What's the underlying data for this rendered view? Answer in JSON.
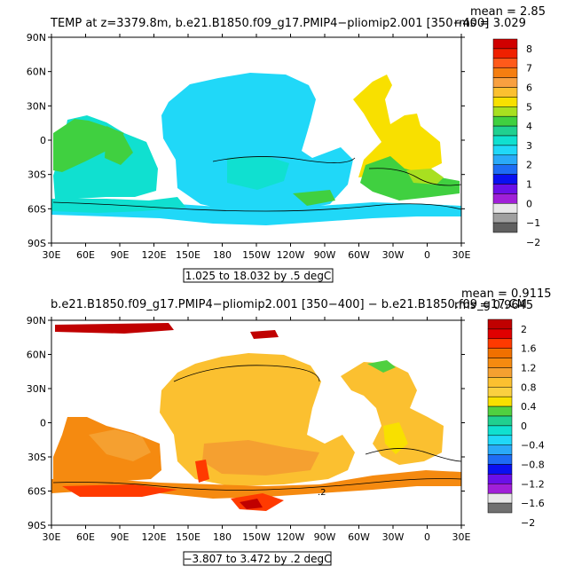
{
  "panel1": {
    "title": "TEMP at z=3379.8m, b.e21.B1850.f09_g17.PMIP4−pliomip2.001 [350−400]",
    "mean": "mean = 2.85",
    "rms": "rms = 3.029",
    "range": "1.025 to 18.032 by .5 degC"
  },
  "panel2": {
    "title": "b.e21.B1850.f09_g17.PMIP4−pliomip2.001 [350−400] − b.e21.B1850.f09_g17.CM",
    "mean": "mean = 0.9115",
    "rms": "rms = 0.9645",
    "range": "−3.807 to 3.472 by .2 degC",
    "contour_label": ".2"
  },
  "lat_labels": [
    "90N",
    "60N",
    "30N",
    "0",
    "30S",
    "60S",
    "90S"
  ],
  "lon_labels": [
    "30E",
    "60E",
    "90E",
    "120E",
    "150E",
    "180",
    "150W",
    "120W",
    "90W",
    "60W",
    "30W",
    "0",
    "30E"
  ],
  "legend1": {
    "labels": [
      "8",
      "7",
      "6",
      "5",
      "4",
      "3",
      "2",
      "1",
      "0",
      "−1",
      "−2"
    ],
    "colors": [
      "#d00000",
      "#f02000",
      "#ff5a1a",
      "#f57e10",
      "#f8a040",
      "#fbc030",
      "#f8e000",
      "#a8e020",
      "#40d040",
      "#20d090",
      "#10e0d0",
      "#20d8f8",
      "#2aaaf8",
      "#1e6cf4",
      "#0a10f0",
      "#6a10e8",
      "#a020d8",
      "#e8e8e8",
      "#a0a0a0",
      "#606060"
    ]
  },
  "legend2": {
    "labels": [
      "2",
      "1.6",
      "1.2",
      "0.8",
      "0.4",
      "0",
      "−0.4",
      "−0.8",
      "−1.2",
      "−1.6",
      "−2"
    ],
    "colors": [
      "#c00000",
      "#e00000",
      "#ff3a00",
      "#f07000",
      "#f58a10",
      "#f5a030",
      "#fbc030",
      "#fad040",
      "#f8e000",
      "#50d040",
      "#20d090",
      "#10e0d0",
      "#20d8f8",
      "#2aaaf8",
      "#1e6cf4",
      "#0a10f0",
      "#6a10e8",
      "#a020d8",
      "#e8e8e8",
      "#707070"
    ]
  },
  "colors": {
    "p1_indian": "#10e0d0",
    "p1_pacific": "#20d8f8",
    "p1_atlantic": "#f8e000",
    "p1_green": "#40d040",
    "p1_lightgreen": "#a8e020",
    "p2_orange": "#f58a10",
    "p2_lightorange": "#f5a030",
    "p2_yellow": "#fbc030",
    "p2_red": "#ff3a00",
    "p2_darkred": "#c00000"
  }
}
